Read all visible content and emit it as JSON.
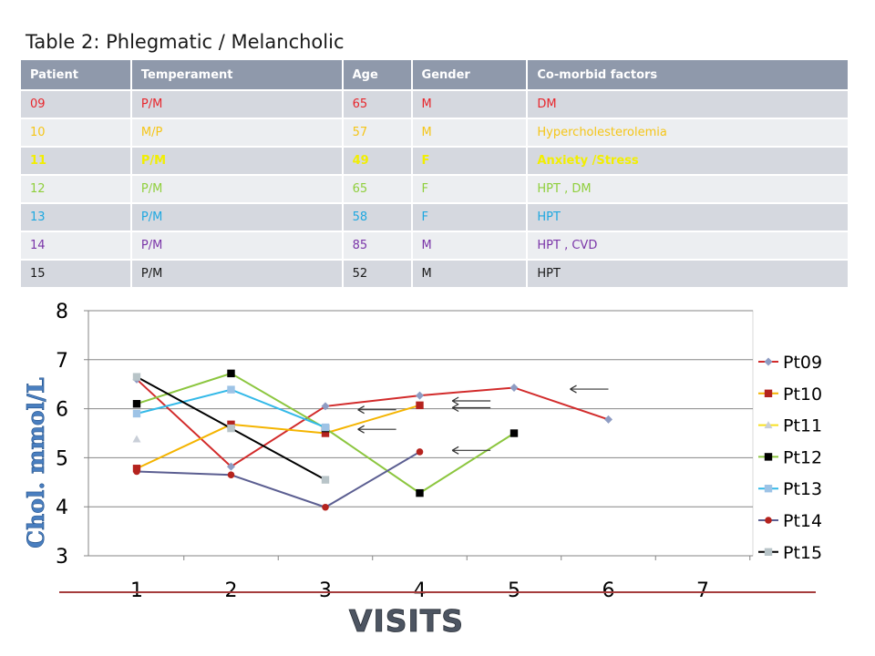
{
  "slide_title": "Table 2: Phlegmatic / Melancholic",
  "table": {
    "headers": [
      "Patient",
      "Temperament",
      "Age",
      "Gender",
      "Co-morbid factors"
    ],
    "rows": [
      {
        "cells": [
          "09",
          "P/M",
          "65",
          "M",
          "DM"
        ],
        "color": "#e8262c"
      },
      {
        "cells": [
          "10",
          "M/P",
          "57",
          "M",
          "Hypercholesterolemia"
        ],
        "color": "#f5c518"
      },
      {
        "cells": [
          "11",
          "P/M",
          "49",
          "F",
          "Anxiety /Stress"
        ],
        "color": "#f2ee00"
      },
      {
        "cells": [
          "12",
          "P/M",
          "65",
          "F",
          "HPT , DM"
        ],
        "color": "#8fcf3c"
      },
      {
        "cells": [
          "13",
          "P/M",
          "58",
          "F",
          "HPT"
        ],
        "color": "#1fa8e0"
      },
      {
        "cells": [
          "14",
          "P/M",
          "85",
          "M",
          "HPT , CVD"
        ],
        "color": "#7a35a8"
      },
      {
        "cells": [
          "15",
          "P/M",
          "52",
          "M",
          "HPT"
        ],
        "color": "#1a1a1a"
      }
    ]
  },
  "chart_data": {
    "type": "line",
    "ylabel": "Chol. mmol/L",
    "xlabel": "VISITS",
    "x_ticks": [
      "1",
      "2",
      "3",
      "4",
      "5",
      "6",
      "7"
    ],
    "y_ticks": [
      "3",
      "4",
      "5",
      "6",
      "7",
      "8"
    ],
    "ylim": [
      3,
      8
    ],
    "xlim": [
      1,
      7
    ],
    "grid": "horizontal",
    "legend_position": "right",
    "series": [
      {
        "name": "Pt09",
        "color": "#d22b2b",
        "marker": "diamond",
        "marker_color": "#8e9cc3",
        "points": [
          [
            1,
            6.6
          ],
          [
            2,
            4.82
          ],
          [
            3,
            6.05
          ],
          [
            4,
            6.27
          ],
          [
            5,
            6.43
          ],
          [
            6,
            5.78
          ]
        ]
      },
      {
        "name": "Pt10",
        "color": "#f4b400",
        "marker": "square",
        "marker_color": "#b5231e",
        "points": [
          [
            1,
            4.78
          ],
          [
            2,
            5.68
          ],
          [
            3,
            5.5
          ],
          [
            4,
            6.07
          ]
        ]
      },
      {
        "name": "Pt11",
        "color": "#f8e020",
        "marker": "triangle",
        "marker_color": "#c9cfd8",
        "points": [
          [
            1,
            5.38
          ]
        ]
      },
      {
        "name": "Pt12",
        "color": "#8cc63f",
        "marker": "square",
        "marker_color": "#000000",
        "points": [
          [
            1,
            6.1
          ],
          [
            2,
            6.72
          ],
          [
            3,
            5.6
          ],
          [
            4,
            4.28
          ],
          [
            5,
            5.5
          ]
        ]
      },
      {
        "name": "Pt13",
        "color": "#33b9e8",
        "marker": "square",
        "marker_color": "#9dc3e6",
        "points": [
          [
            1,
            5.9
          ],
          [
            2,
            6.39
          ],
          [
            3,
            5.62
          ]
        ]
      },
      {
        "name": "Pt14",
        "color": "#5b5e91",
        "marker": "circle",
        "marker_color": "#b5231e",
        "points": [
          [
            1,
            4.72
          ],
          [
            2,
            4.65
          ],
          [
            3,
            3.99
          ],
          [
            4,
            5.12
          ]
        ]
      },
      {
        "name": "Pt15",
        "color": "#000000",
        "marker": "square",
        "marker_color": "#b8c4c8",
        "points": [
          [
            1,
            6.65
          ],
          [
            2,
            5.6
          ],
          [
            3,
            4.55
          ]
        ]
      }
    ],
    "annotations": [
      {
        "type": "left-arrow",
        "at": [
          6,
          6.4
        ]
      },
      {
        "type": "left-arrow",
        "at": [
          4.75,
          6.16
        ]
      },
      {
        "type": "left-arrow",
        "at": [
          4.75,
          6.02
        ]
      },
      {
        "type": "left-arrow",
        "at": [
          3.75,
          5.98
        ]
      },
      {
        "type": "left-arrow",
        "at": [
          3.75,
          5.58
        ]
      },
      {
        "type": "left-arrow",
        "at": [
          4.75,
          5.15
        ]
      }
    ]
  }
}
